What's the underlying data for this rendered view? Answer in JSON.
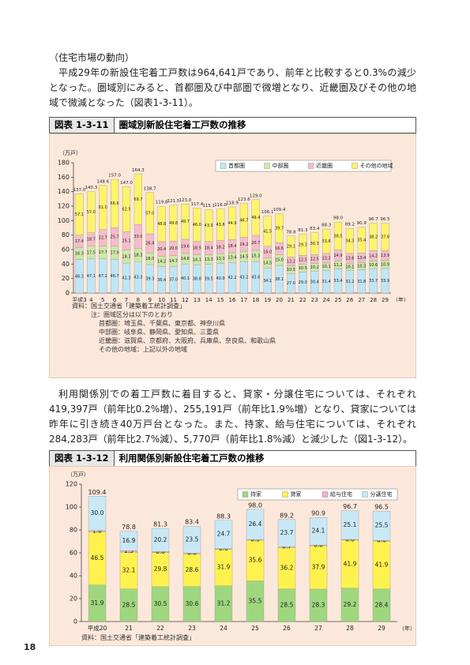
{
  "section_heading": "（住宅市場の動向）",
  "paragraphs": [
    "平成29年の新設住宅着工戸数は964,641戸であり、前年と比較すると0.3%の減少となった。圏域別にみると、首都圏及び中部圏で微増となり、近畿圏及びその他の地域で微減となった（図表1-3-11）。",
    "利用関係別での着工戸数に着目すると、貸家・分譲住宅については、それぞれ419,397戸（前年比0.2%増）、255,191戸（前年比1.9%増）となり、貸家については昨年に引き続き40万戸台となった。また、持家、給与住宅については、それぞれ284,283戸（前年比2.7%減）、5,770戸（前年比1.8%減）と減少した（図1-3-12）。"
  ],
  "page_number": "18",
  "chart_data": [
    {
      "type": "stacked-bar",
      "figure_number": "図表 1-3-11",
      "title": "圏域別新設住宅着工戸数の推移",
      "y_unit": "（万戸）",
      "x_unit": "（年）",
      "categories": [
        "平成3",
        "4",
        "5",
        "6",
        "7",
        "8",
        "9",
        "10",
        "11",
        "12",
        "13",
        "14",
        "15",
        "16",
        "17",
        "18",
        "19",
        "20",
        "21",
        "22",
        "23",
        "24",
        "25",
        "26",
        "27",
        "28",
        "29"
      ],
      "series": [
        {
          "name": "首都圏",
          "color": "#bfe6f6",
          "values": [
            46.3,
            47.1,
            47.2,
            46.7,
            41.3,
            43.3,
            39.3,
            36.4,
            37,
            40.1,
            38.8,
            39.5,
            40.9,
            42.2,
            43.2,
            43.6,
            34.1,
            38.1,
            27,
            29,
            30.4,
            31.4,
            33.4,
            31.2,
            31.8,
            33.7,
            33.9
          ],
          "value_labels": [
            "46.3",
            "47.1",
            "47.2",
            "46.7",
            "41.3",
            "43.3",
            "39.3",
            "36.4",
            "37.0",
            "40.1",
            "38.8",
            "39.5",
            "40.9",
            "42.2",
            "43.2",
            "43.6",
            "34.1",
            "38.1",
            "27.0",
            "29.0",
            "30.4",
            "31.4",
            "33.4",
            "31.2",
            "31.8",
            "33.7",
            "33.9"
          ]
        },
        {
          "name": "中部圏",
          "color": "#cde9a6",
          "values": [
            16.3,
            17.5,
            17.7,
            17.9,
            18.1,
            18.3,
            16,
            14.2,
            14.7,
            14.6,
            14.1,
            13.3,
            13.3,
            13.4,
            14.5,
            15.3,
            14.5,
            15,
            10.5,
            10.5,
            10.2,
            10.1,
            11.2,
            10.1,
            10.3,
            10.6,
            10.9
          ],
          "value_labels": [
            "16.3",
            "17.5",
            "17.7",
            "17.9",
            "18.1",
            "18.3",
            "16.0",
            "14.2",
            "14.7",
            "14.6",
            "14.1",
            "13.3",
            "13.3",
            "13.4",
            "14.5",
            "15.3",
            "14.5",
            "15.0",
            "10.5",
            "10.5",
            "10.2",
            "10.1",
            "11.2",
            "10.1",
            "10.3",
            "10.6",
            "10.9"
          ]
        },
        {
          "name": "近畿圏",
          "color": "#f6bccb",
          "values": [
            17.4,
            18.7,
            22.7,
            25.7,
            25.1,
            33,
            26.4,
            20.4,
            20,
            19.6,
            18.5,
            18.4,
            18.2,
            18.4,
            19.2,
            20.7,
            16,
            16.6,
            12.2,
            12.5,
            12.5,
            13.2,
            14.9,
            13.6,
            13.4,
            14.2,
            13.9
          ],
          "value_labels": [
            "17.4",
            "18.7",
            "22.7",
            "25.7",
            "25.1",
            "33.0",
            "26.4",
            "20.4",
            "20.0",
            "19.6",
            "18.5",
            "18.4",
            "18.2",
            "18.4",
            "19.2",
            "20.7",
            "16.0",
            "16.6",
            "12.2",
            "12.5",
            "12.5",
            "13.2",
            "14.9",
            "13.6",
            "13.4",
            "14.2",
            "13.9"
          ]
        },
        {
          "name": "その他の地域",
          "color": "#fff36b",
          "values": [
            57.1,
            57,
            61,
            66.6,
            62.5,
            69.7,
            57,
            48.8,
            49.8,
            48.7,
            46,
            43.9,
            43.6,
            44.9,
            46.7,
            49.4,
            41.5,
            39.7,
            29.1,
            29.3,
            30.3,
            33.6,
            38.5,
            34.3,
            35.4,
            38.2,
            37.8
          ],
          "value_labels": [
            "57.1",
            "57.0",
            "61.0",
            "66.6",
            "62.5",
            "69.7",
            "57.0",
            "48.8",
            "49.8",
            "48.7",
            "46.0",
            "43.9",
            "43.6",
            "44.9",
            "46.7",
            "49.4",
            "41.5",
            "39.7",
            "29.1",
            "29.3",
            "30.3",
            "33.6",
            "38.5",
            "34.3",
            "35.4",
            "38.2",
            "37.8"
          ]
        }
      ],
      "total_labels": [
        "137.0",
        "140.3",
        "148.6",
        "157.0",
        "147.0",
        "164.3",
        "138.7",
        "119.8",
        "121.5",
        "123.0",
        "117.4",
        "115.1",
        "116.0",
        "118.9",
        "123.6",
        "129.0",
        "106.1",
        "109.4",
        "78.8",
        "81.3",
        "83.4",
        "88.3",
        "98.0",
        "89.2",
        "90.9",
        "96.7",
        "96.5"
      ],
      "ylim": [
        0,
        180
      ],
      "yticks": [
        0,
        20,
        40,
        60,
        80,
        100,
        120,
        140,
        160,
        180
      ],
      "grid": false,
      "legend": "top-right",
      "source": "資料：国土交通省「建築着工統計調査」",
      "notes": [
        "注：圏域区分は以下のとおり",
        "首都圏：埼玉県、千葉県、東京都、神奈川県",
        "中部圏：岐阜県、静岡県、愛知県、三重県",
        "近畿圏：滋賀県、京都府、大阪府、兵庫県、奈良県、和歌山県",
        "その他の地域：上記以外の地域"
      ]
    },
    {
      "type": "stacked-bar",
      "figure_number": "図表 1-3-12",
      "title": "利用関係別新設住宅着工戸数の推移",
      "y_unit": "（万戸）",
      "x_unit": "（年）",
      "categories": [
        "平成20",
        "21",
        "22",
        "23",
        "24",
        "25",
        "26",
        "27",
        "28",
        "29"
      ],
      "series": [
        {
          "name": "持家",
          "color": "#9fd77f",
          "values": [
            31.9,
            28.5,
            30.5,
            30.6,
            31.2,
            35.5,
            28.5,
            28.3,
            29.2,
            28.4
          ],
          "value_labels": [
            "31.9",
            "28.5",
            "30.5",
            "30.6",
            "31.2",
            "35.5",
            "28.5",
            "28.3",
            "29.2",
            "28.4"
          ]
        },
        {
          "name": "貸家",
          "color": "#fff24f",
          "values": [
            46.5,
            32.1,
            29.8,
            28.6,
            31.9,
            35.6,
            36.2,
            37.9,
            41.9,
            41.9
          ],
          "value_labels": [
            "46.5",
            "32.1",
            "29.8",
            "28.6",
            "31.9",
            "35.6",
            "36.2",
            "37.9",
            "41.9",
            "41.9"
          ]
        },
        {
          "name": "給与住宅",
          "color": "#f5abc3",
          "values": [
            1,
            1.3,
            0.8,
            0.6,
            0.6,
            0.5,
            0.7,
            0.6,
            0.6,
            0.6
          ],
          "value_labels": [
            "1.0",
            "1.3",
            "0.8",
            "0.6",
            "0.6",
            "0.5",
            "0.7",
            "0.6",
            "0.6",
            "0.6"
          ]
        },
        {
          "name": "分譲住宅",
          "color": "#c9e8f6",
          "values": [
            30,
            16.9,
            20.2,
            23.5,
            24.7,
            26.4,
            23.7,
            24.1,
            25.1,
            25.5
          ],
          "value_labels": [
            "30.0",
            "16.9",
            "20.2",
            "23.5",
            "24.7",
            "26.4",
            "23.7",
            "24.1",
            "25.1",
            "25.5"
          ]
        }
      ],
      "total_labels": [
        "109.4",
        "78.8",
        "81.3",
        "83.4",
        "88.3",
        "98.0",
        "89.2",
        "90.9",
        "96.7",
        "96.5"
      ],
      "ylim": [
        0,
        120
      ],
      "yticks": [
        0,
        20,
        40,
        60,
        80,
        100,
        120
      ],
      "grid": false,
      "legend": "top-right",
      "source": "資料：国土交通省「建築着工統計調査」"
    }
  ]
}
